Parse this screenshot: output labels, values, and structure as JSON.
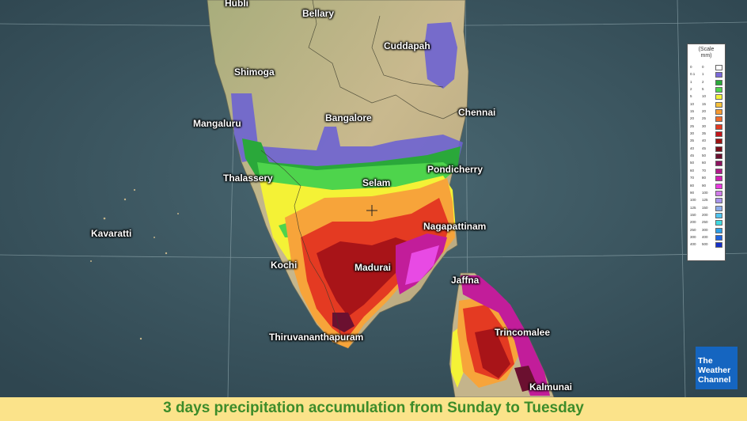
{
  "caption": "3 days precipitation accumulation from Sunday to Tuesday",
  "legend": {
    "title_line1": "(Scale",
    "title_line2": "mm)",
    "rows": [
      {
        "lo": "0",
        "hi": "0",
        "color": "#ffffff"
      },
      {
        "lo": "0.1",
        "hi": "1",
        "color": "#7b68d9"
      },
      {
        "lo": "1",
        "hi": "2",
        "color": "#2aa83a"
      },
      {
        "lo": "2",
        "hi": "5",
        "color": "#4ed44c"
      },
      {
        "lo": "5",
        "hi": "10",
        "color": "#f4f236"
      },
      {
        "lo": "10",
        "hi": "15",
        "color": "#f7c13a"
      },
      {
        "lo": "15",
        "hi": "20",
        "color": "#f59a31"
      },
      {
        "lo": "20",
        "hi": "25",
        "color": "#f06a2b"
      },
      {
        "lo": "25",
        "hi": "30",
        "color": "#e43a22"
      },
      {
        "lo": "30",
        "hi": "35",
        "color": "#c4161a"
      },
      {
        "lo": "35",
        "hi": "40",
        "color": "#9c1212"
      },
      {
        "lo": "40",
        "hi": "45",
        "color": "#7a0e1a"
      },
      {
        "lo": "45",
        "hi": "50",
        "color": "#6b1030"
      },
      {
        "lo": "50",
        "hi": "60",
        "color": "#8e1460"
      },
      {
        "lo": "60",
        "hi": "70",
        "color": "#b01a8a"
      },
      {
        "lo": "70",
        "hi": "80",
        "color": "#d21fb4"
      },
      {
        "lo": "80",
        "hi": "90",
        "color": "#ea3ae0"
      },
      {
        "lo": "90",
        "hi": "100",
        "color": "#d07ae8"
      },
      {
        "lo": "100",
        "hi": "125",
        "color": "#a794ec"
      },
      {
        "lo": "125",
        "hi": "150",
        "color": "#8aaae8"
      },
      {
        "lo": "150",
        "hi": "200",
        "color": "#4fc3ee"
      },
      {
        "lo": "200",
        "hi": "250",
        "color": "#3fd8e0"
      },
      {
        "lo": "250",
        "hi": "300",
        "color": "#2c9fe8"
      },
      {
        "lo": "300",
        "hi": "400",
        "color": "#1f62e0"
      },
      {
        "lo": "400",
        "hi": "500",
        "color": "#1630c8"
      }
    ]
  },
  "logo": {
    "line1": "The",
    "line2": "Weather",
    "line3": "Channel"
  },
  "cities": {
    "hubli": "Hubli",
    "bellary": "Bellary",
    "cuddapah": "Cuddapah",
    "shimoga": "Shimoga",
    "mangaluru": "Mangaluru",
    "bangalore": "Bangalore",
    "chennai": "Chennai",
    "thalassery": "Thalassery",
    "selam": "Selam",
    "pondicherry": "Pondicherry",
    "kavaratti": "Kavaratti",
    "nagapattinam": "Nagapattinam",
    "kochi": "Kochi",
    "madurai": "Madurai",
    "jaffna": "Jaffna",
    "trincomalee": "Trincomalee",
    "thiruvananthapuram": "Thiruvananthapuram",
    "kalmunai": "Kalmunai"
  },
  "colors": {
    "sea": "#3b5560",
    "land": "#b9b08a",
    "caption_bg": "#fbe38a",
    "caption_text": "#3d8c2a",
    "logo_bg": "#1565c0"
  }
}
